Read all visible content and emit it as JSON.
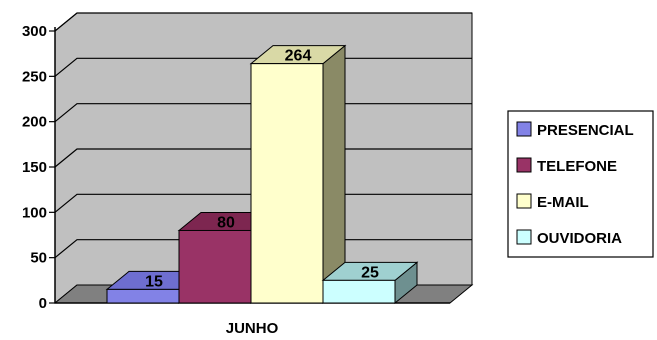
{
  "chart_data": {
    "type": "bar",
    "categories": [
      "JUNHO"
    ],
    "series": [
      {
        "name": "PRESENCIAL",
        "values": [
          15
        ],
        "data_label": "15",
        "color": "#8282e6",
        "side_color": "#5a5ab4",
        "top_color": "#6e6ed0"
      },
      {
        "name": "TELEFONE",
        "values": [
          80
        ],
        "data_label": "80",
        "color": "#993366",
        "side_color": "#6b1f45",
        "top_color": "#7d2650"
      },
      {
        "name": "E-MAIL",
        "values": [
          264
        ],
        "data_label": "264",
        "color": "#ffffcc",
        "side_color": "#8a8a66",
        "top_color": "#d9d9a6"
      },
      {
        "name": "OUVIDORIA",
        "values": [
          25
        ],
        "data_label": "25",
        "color": "#ccffff",
        "side_color": "#6e9090",
        "top_color": "#9fd0d0"
      }
    ],
    "yticks": [
      "0",
      "50",
      "100",
      "150",
      "200",
      "250",
      "300"
    ],
    "ylim": [
      0,
      300
    ],
    "grid": true,
    "legend_position": "right",
    "wall_color": "#c0c0c0",
    "floor_color": "#808080"
  }
}
